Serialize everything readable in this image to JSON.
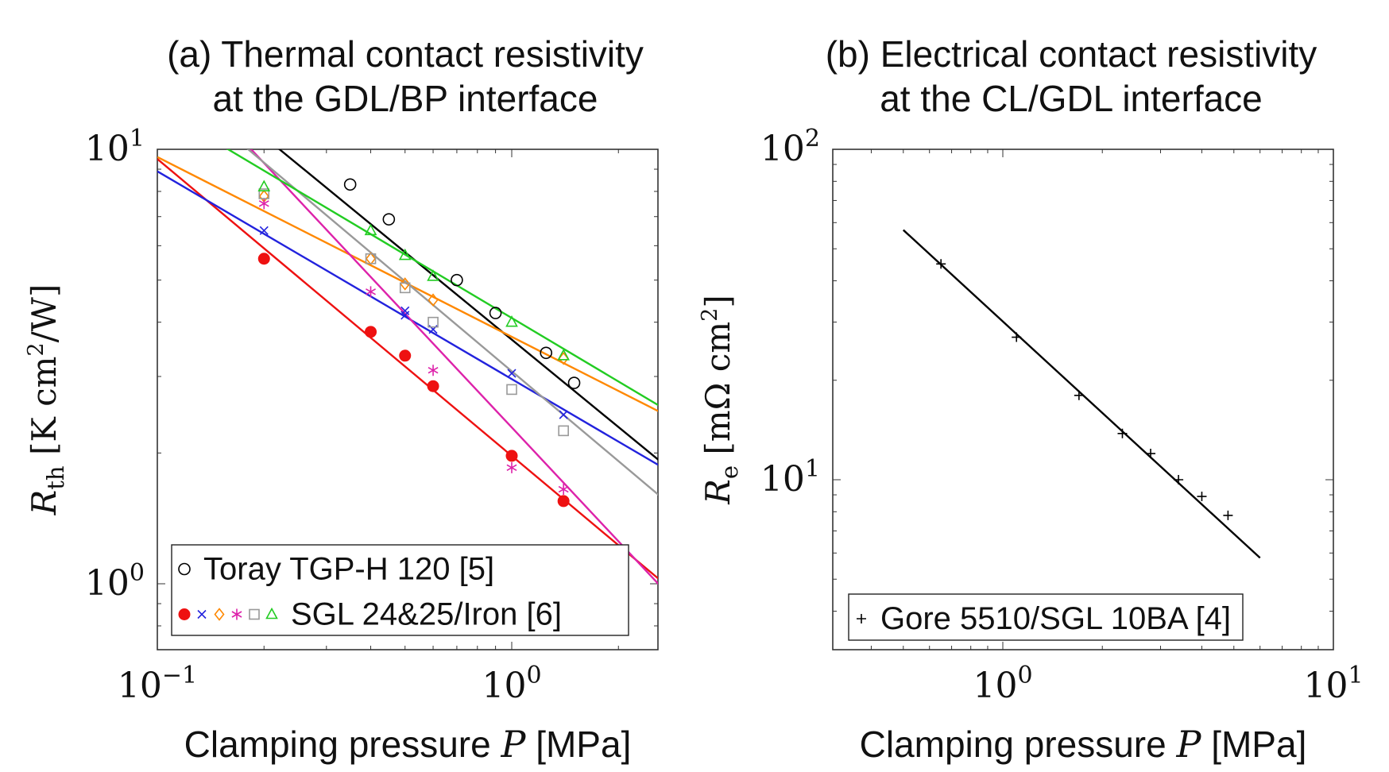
{
  "chart_data": [
    {
      "type": "scatter",
      "title": "(a) Thermal contact resistivity",
      "subtitle": "at the GDL/BP interface",
      "xlabel": "Clamping pressure P [MPa]",
      "ylabel": "R_th [K cm^2/W]",
      "x_scale": "log",
      "y_scale": "log",
      "xlim": [
        0.1,
        3.0
      ],
      "ylim": [
        0.7,
        10
      ],
      "x_ticks": [
        {
          "label": "10",
          "exp": "−1"
        },
        {
          "label": "10",
          "exp": "0"
        }
      ],
      "y_ticks": [
        {
          "label": "10",
          "exp": "0"
        },
        {
          "label": "10",
          "exp": "1"
        }
      ],
      "grid": false,
      "legend_position": "bottom-left",
      "legend": [
        {
          "label": "Toray TGP-H 120 [5]",
          "markers": [
            "circle"
          ]
        },
        {
          "label": "SGL 24&25/Iron [6]",
          "markers": [
            "filled-circle",
            "x",
            "diamond",
            "asterisk",
            "square",
            "triangle"
          ]
        }
      ],
      "series": [
        {
          "marker": "circle",
          "color": "#000000",
          "points": [
            [
              0.35,
              8.3
            ],
            [
              0.45,
              6.9
            ],
            [
              0.7,
              5.0
            ],
            [
              0.9,
              4.2
            ],
            [
              1.25,
              3.4
            ],
            [
              1.5,
              2.9
            ]
          ],
          "fit": [
            [
              0.1,
              17.0
            ],
            [
              3.0,
              1.75
            ]
          ]
        },
        {
          "marker": "filled-circle",
          "color": "#ee1111",
          "points": [
            [
              0.2,
              5.6
            ],
            [
              0.4,
              3.8
            ],
            [
              0.5,
              3.35
            ],
            [
              0.6,
              2.85
            ],
            [
              1.0,
              1.97
            ],
            [
              1.4,
              1.55
            ]
          ],
          "fit": [
            [
              0.1,
              9.5
            ],
            [
              3.0,
              0.93
            ]
          ]
        },
        {
          "marker": "x",
          "color": "#2222dd",
          "points": [
            [
              0.2,
              6.5
            ],
            [
              0.5,
              4.25
            ],
            [
              0.5,
              4.15
            ],
            [
              0.6,
              3.85
            ],
            [
              1.0,
              3.05
            ],
            [
              1.4,
              2.45
            ]
          ],
          "fit": [
            [
              0.1,
              8.9
            ],
            [
              3.0,
              1.75
            ]
          ]
        },
        {
          "marker": "diamond",
          "color": "#ff8800",
          "points": [
            [
              0.2,
              7.8
            ],
            [
              0.4,
              5.6
            ],
            [
              0.5,
              4.9
            ],
            [
              0.6,
              4.5
            ],
            [
              1.4,
              3.3
            ]
          ],
          "fit": [
            [
              0.1,
              9.6
            ],
            [
              3.0,
              2.35
            ]
          ]
        },
        {
          "marker": "asterisk",
          "color": "#dd22aa",
          "points": [
            [
              0.2,
              7.5
            ],
            [
              0.4,
              4.7
            ],
            [
              0.6,
              3.1
            ],
            [
              1.0,
              1.85
            ],
            [
              1.4,
              1.65
            ]
          ],
          "fit": [
            [
              0.1,
              17.0
            ],
            [
              3.0,
              0.88
            ]
          ]
        },
        {
          "marker": "square",
          "color": "#999999",
          "points": [
            [
              0.2,
              7.9
            ],
            [
              0.4,
              5.6
            ],
            [
              0.5,
              4.8
            ],
            [
              0.6,
              4.0
            ],
            [
              1.0,
              2.8
            ],
            [
              1.4,
              2.25
            ]
          ],
          "fit": [
            [
              0.1,
              15.0
            ],
            [
              3.0,
              1.45
            ]
          ]
        },
        {
          "marker": "triangle",
          "color": "#22cc22",
          "points": [
            [
              0.2,
              8.2
            ],
            [
              0.4,
              6.5
            ],
            [
              0.5,
              5.7
            ],
            [
              0.6,
              5.1
            ],
            [
              1.0,
              4.0
            ],
            [
              1.4,
              3.35
            ]
          ],
          "fit": [
            [
              0.1,
              12.5
            ],
            [
              3.0,
              2.4
            ]
          ]
        }
      ]
    },
    {
      "type": "scatter",
      "title": "(b) Electrical contact resistivity",
      "subtitle": "at the CL/GDL interface",
      "xlabel": "Clamping pressure P [MPa]",
      "ylabel": "R_e [mΩ cm^2]",
      "x_scale": "log",
      "y_scale": "log",
      "xlim": [
        0.3,
        10
      ],
      "ylim": [
        3,
        100
      ],
      "x_ticks": [
        {
          "label": "10",
          "exp": "0"
        },
        {
          "label": "10",
          "exp": "1"
        }
      ],
      "y_ticks": [
        {
          "label": "10",
          "exp": "1"
        },
        {
          "label": "10",
          "exp": "2"
        }
      ],
      "grid": false,
      "legend_position": "bottom-left",
      "legend": [
        {
          "label": "Gore 5510/SGL 10BA [4]",
          "markers": [
            "plus"
          ]
        }
      ],
      "series": [
        {
          "marker": "plus",
          "color": "#000000",
          "points": [
            [
              0.65,
              45
            ],
            [
              1.1,
              27
            ],
            [
              1.7,
              18
            ],
            [
              2.3,
              13.8
            ],
            [
              2.8,
              12
            ],
            [
              3.4,
              10
            ],
            [
              4.0,
              8.9
            ],
            [
              4.8,
              7.8
            ]
          ],
          "fit": [
            [
              0.5,
              57
            ],
            [
              6.0,
              5.8
            ]
          ]
        }
      ]
    }
  ]
}
